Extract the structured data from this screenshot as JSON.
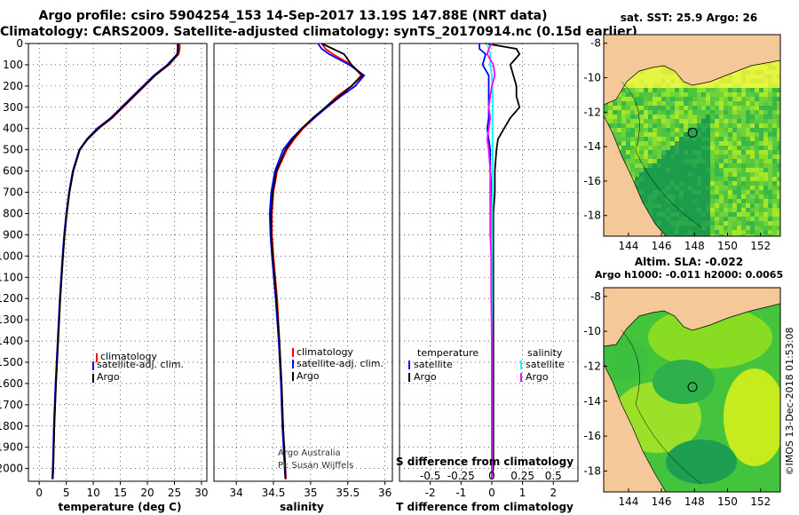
{
  "header": {
    "title_line1": "Argo profile: csiro 5904254_153 14-Sep-2017 13.19S 147.88E (NRT data)",
    "title_line2": "Climatology: CARS2009. Satellite-adjusted climatology: synTS_20170914.nc (0.15d earlier)"
  },
  "colors": {
    "climatology": "#ff0000",
    "satellite": "#0000ff",
    "argo": "#000000",
    "sat_salinity": "#00ffff",
    "argo_salinity": "#ff00ff",
    "land": "#f5c89a",
    "ocean_dark": "#1d9c4c"
  },
  "chart_data": [
    {
      "type": "line",
      "xlabel": "temperature (deg C)",
      "ylabel": "",
      "xlim": [
        -2,
        31
      ],
      "ylim": [
        2060,
        0
      ],
      "xticks": [
        0,
        5,
        10,
        15,
        20,
        25,
        30
      ],
      "yticks": [
        0,
        100,
        200,
        300,
        400,
        500,
        600,
        700,
        800,
        900,
        1000,
        1100,
        1200,
        1300,
        1400,
        1500,
        1600,
        1700,
        1800,
        1900,
        2000
      ],
      "depth": [
        0,
        25,
        50,
        100,
        150,
        200,
        250,
        300,
        350,
        400,
        450,
        500,
        600,
        700,
        800,
        900,
        1000,
        1200,
        1400,
        1600,
        1800,
        2000,
        2050
      ],
      "series": [
        {
          "name": "climatology",
          "color": "#ff0000",
          "values": [
            26,
            26,
            25.8,
            24,
            21.5,
            19.5,
            17.5,
            15.5,
            13.5,
            11,
            9,
            7.5,
            6.3,
            5.6,
            5.1,
            4.7,
            4.4,
            3.9,
            3.5,
            3.1,
            2.8,
            2.6,
            2.5
          ]
        },
        {
          "name": "satellite-adj. clim.",
          "color": "#0000ff",
          "values": [
            25.6,
            25.6,
            25.5,
            23.7,
            21.2,
            19.2,
            17.2,
            15.2,
            13.2,
            10.7,
            8.8,
            7.4,
            6.2,
            5.5,
            5,
            4.6,
            4.3,
            3.8,
            3.4,
            3,
            2.7,
            2.5,
            2.4
          ]
        },
        {
          "name": "Argo",
          "color": "#000000",
          "values": [
            25.7,
            25.7,
            25.6,
            23.9,
            21.4,
            19.4,
            17.4,
            15.4,
            13.4,
            10.9,
            8.9,
            7.5,
            6.3,
            5.6,
            5.1,
            4.7,
            4.4,
            3.9,
            3.5,
            3.1,
            2.8,
            2.6,
            2.5
          ]
        }
      ],
      "legend": [
        "climatology",
        "satellite-adj. clim.",
        "Argo"
      ]
    },
    {
      "type": "line",
      "xlabel": "salinity",
      "xlim": [
        33.7,
        36.1
      ],
      "ylim": [
        2060,
        0
      ],
      "xticks": [
        34,
        34.5,
        35,
        35.5,
        36
      ],
      "xticklabels": [
        "34",
        "34.5",
        "35",
        "35.5",
        "36"
      ],
      "depth": [
        0,
        25,
        50,
        100,
        150,
        200,
        250,
        300,
        350,
        400,
        450,
        500,
        600,
        700,
        800,
        900,
        1000,
        1200,
        1400,
        1600,
        1800,
        2000,
        2050
      ],
      "series": [
        {
          "name": "climatology",
          "color": "#ff0000",
          "values": [
            35.15,
            35.2,
            35.3,
            35.55,
            35.68,
            35.55,
            35.35,
            35.2,
            35.05,
            34.9,
            34.78,
            34.68,
            34.55,
            34.5,
            34.48,
            34.48,
            34.5,
            34.55,
            34.58,
            34.61,
            34.63,
            34.66,
            34.67
          ]
        },
        {
          "name": "satellite-adj. clim.",
          "color": "#0000ff",
          "values": [
            35.1,
            35.15,
            35.25,
            35.52,
            35.72,
            35.6,
            35.4,
            35.22,
            35.05,
            34.88,
            34.74,
            34.63,
            34.52,
            34.47,
            34.45,
            34.46,
            34.48,
            34.53,
            34.57,
            34.6,
            34.62,
            34.65,
            34.66
          ]
        },
        {
          "name": "Argo",
          "color": "#000000",
          "values": [
            35.15,
            35.3,
            35.45,
            35.55,
            35.7,
            35.55,
            35.38,
            35.2,
            35.03,
            34.88,
            34.76,
            34.66,
            34.54,
            34.49,
            34.47,
            34.47,
            34.49,
            34.54,
            34.58,
            34.61,
            34.63,
            34.66,
            34.66
          ]
        }
      ],
      "legend": [
        "climatology",
        "satellite-adj. clim.",
        "Argo"
      ],
      "annotations": [
        "Argo Australia",
        "PI: Susan Wijffels"
      ]
    },
    {
      "type": "line",
      "xlabel": "T difference from climatology",
      "xlabel_top": "S difference from climatology",
      "xlim": [
        -3,
        2.8
      ],
      "ylim": [
        2060,
        0
      ],
      "xticks": [
        -2,
        -1,
        0,
        1,
        2
      ],
      "xticks_top": [
        -0.5,
        -0.25,
        0,
        0.25,
        0.5
      ],
      "xticklabels_top": [
        "-0.5",
        "-0.25",
        "0",
        "0.25",
        "0.5"
      ],
      "depth": [
        0,
        25,
        50,
        100,
        150,
        200,
        250,
        300,
        350,
        400,
        450,
        500,
        600,
        700,
        800,
        900,
        1000,
        1200,
        1400,
        1600,
        1800,
        2000,
        2050
      ],
      "series": [
        {
          "name": "temperature satellite",
          "color": "#0000ff",
          "values": [
            -0.4,
            -0.4,
            -0.2,
            -0.3,
            -0.1,
            -0.1,
            -0.1,
            -0.1,
            -0.1,
            -0.15,
            -0.1,
            -0.05,
            -0.05,
            0,
            0,
            0,
            0,
            0,
            0,
            0,
            0,
            0,
            0
          ]
        },
        {
          "name": "temperature Argo",
          "color": "#000000",
          "values": [
            -0.2,
            0.8,
            0.9,
            0.6,
            0.7,
            0.8,
            0.8,
            0.9,
            0.6,
            0.4,
            0.2,
            0.15,
            0.1,
            0.1,
            0.05,
            0.05,
            0.05,
            0.05,
            0.05,
            0.05,
            0.05,
            0.05,
            0
          ]
        },
        {
          "name": "salinity satellite",
          "color": "#00ffff",
          "values": [
            -0.15,
            -0.1,
            -0.05,
            -0.05,
            0,
            0.02,
            0.03,
            0.03,
            0.02,
            0.02,
            0.02,
            0.03,
            0.02,
            0.02,
            0.01,
            0.01,
            0.01,
            0.01,
            0.01,
            0.01,
            0.01,
            0.01,
            0.01
          ]
        },
        {
          "name": "salinity Argo",
          "color": "#ff00ff",
          "values": [
            0,
            -0.1,
            -0.15,
            0.05,
            0.1,
            0,
            -0.05,
            -0.1,
            -0.05,
            -0.1,
            -0.15,
            -0.1,
            -0.05,
            -0.05,
            -0.05,
            -0.05,
            -0.02,
            -0.02,
            0,
            0,
            0,
            0,
            0
          ]
        }
      ],
      "legend_left": {
        "title": "temperature",
        "items": [
          "satellite",
          "Argo"
        ]
      },
      "legend_right": {
        "title": "salinity",
        "items": [
          "satellite",
          "Argo"
        ]
      }
    },
    {
      "type": "heatmap",
      "title": "sat. SST: 25.9 Argo: 26",
      "lon_range": [
        142.5,
        153.2
      ],
      "lat_range": [
        -19.2,
        -7.5
      ],
      "xticks": [
        144,
        146,
        148,
        150,
        152
      ],
      "yticks": [
        -8,
        -10,
        -12,
        -14,
        -16,
        -18
      ],
      "marker": {
        "lon": 147.88,
        "lat": -13.19
      }
    },
    {
      "type": "heatmap",
      "title": "Altim. SLA: -0.022",
      "subtitle": "Argo h1000: -0.011 h2000: 0.0065",
      "lon_range": [
        142.5,
        153.2
      ],
      "lat_range": [
        -19.2,
        -7.5
      ],
      "xticks": [
        144,
        146,
        148,
        150,
        152
      ],
      "yticks": [
        -8,
        -10,
        -12,
        -14,
        -16,
        -18
      ],
      "marker": {
        "lon": 147.88,
        "lat": -13.19
      }
    }
  ],
  "footer": {
    "credit": "©IMOS 13-Dec-2018 01:53:08"
  }
}
